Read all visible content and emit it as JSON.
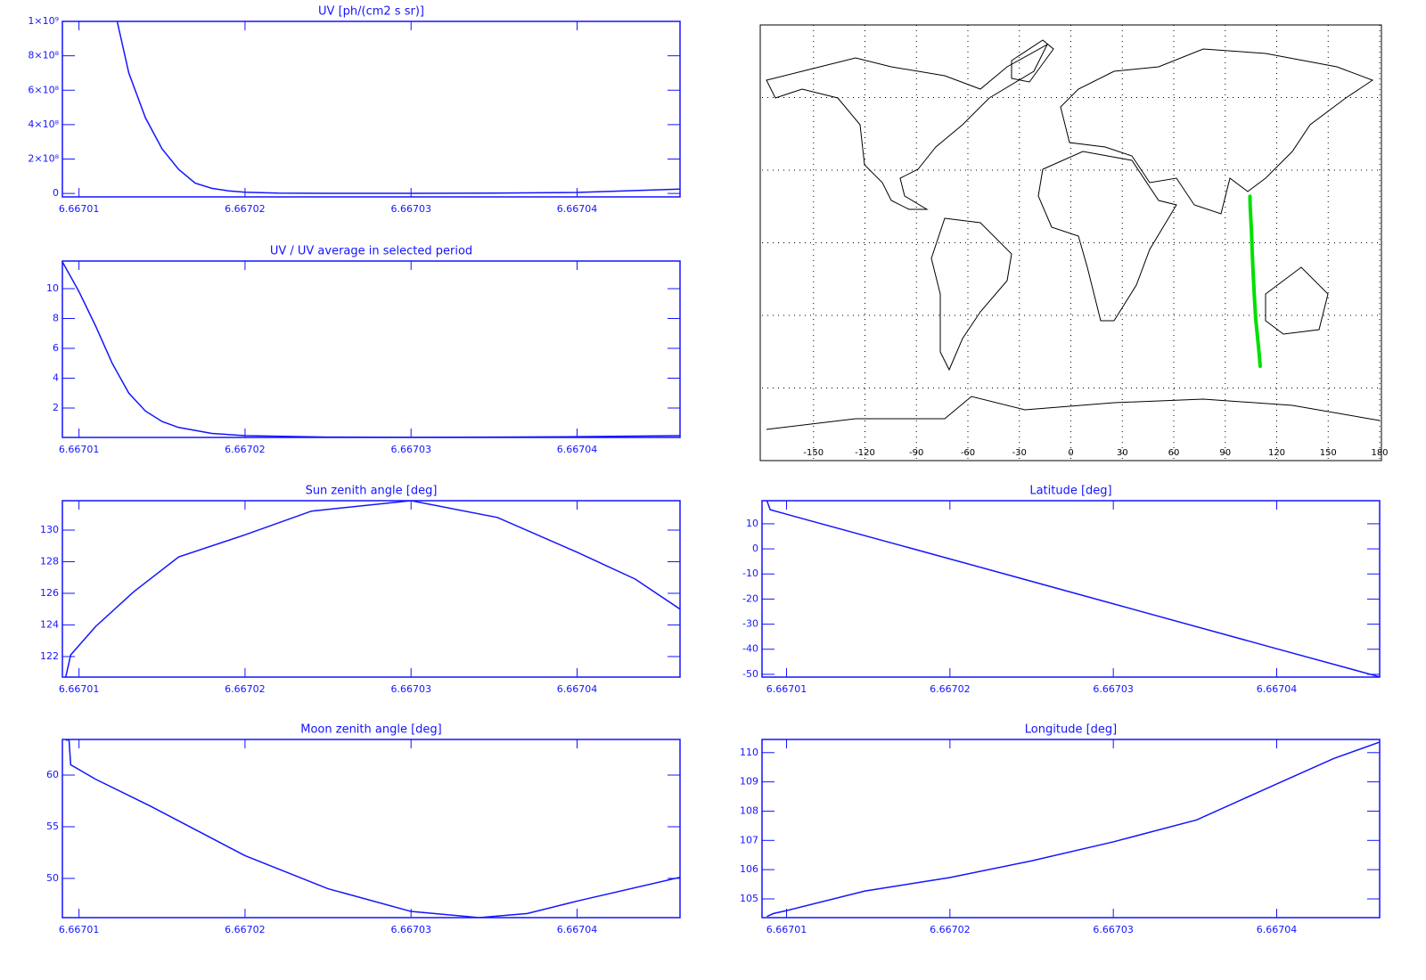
{
  "chart_data": [
    {
      "type": "line",
      "title": "UV [ph/(cm2 s sr)]",
      "color": "#1414ff",
      "x": [
        6.6670123,
        6.667013,
        6.667014,
        6.667015,
        6.667016,
        6.667017,
        6.667018,
        6.667019,
        6.66702,
        6.667022,
        6.667025,
        6.66703,
        6.667035,
        6.66704,
        6.6670462
      ],
      "values": [
        1000000000,
        700000000,
        440000000,
        260000000,
        140000000,
        60000000,
        30000000,
        15000000,
        7000000,
        2000000,
        1000000,
        1000000,
        2000000,
        6000000,
        25000000
      ],
      "xlim": [
        6.667009,
        6.6670462
      ],
      "ylim": [
        -20000000,
        1000000000
      ],
      "xticks": [
        6.66701,
        6.66702,
        6.66703,
        6.66704
      ],
      "yticks": [
        0,
        {
          "value": 200000000,
          "label": "2×10⁸"
        },
        {
          "value": 400000000,
          "label": "4×10⁸"
        },
        {
          "value": 600000000,
          "label": "6×10⁸"
        },
        {
          "value": 800000000,
          "label": "8×10⁸"
        },
        {
          "value": 1000000000,
          "label": "1×10⁹"
        }
      ]
    },
    {
      "type": "line",
      "title": "UV / UV average in selected period",
      "color": "#1414ff",
      "x": [
        6.667009,
        6.66701,
        6.667011,
        6.667012,
        6.667013,
        6.667014,
        6.667015,
        6.667016,
        6.667018,
        6.66702,
        6.667025,
        6.66703,
        6.667035,
        6.66704,
        6.6670462
      ],
      "values": [
        11.8,
        9.8,
        7.5,
        5.0,
        3.0,
        1.8,
        1.1,
        0.7,
        0.3,
        0.15,
        0.05,
        0.04,
        0.05,
        0.08,
        0.15
      ],
      "xlim": [
        6.667009,
        6.6670462
      ],
      "ylim": [
        0.03,
        11.85
      ],
      "xticks": [
        6.66701,
        6.66702,
        6.66703,
        6.66704
      ],
      "yticks": [
        2,
        4,
        6,
        8,
        10
      ]
    },
    {
      "type": "map",
      "color": "#00e000",
      "x": [
        104.4,
        104.5,
        104.6,
        105.27,
        105.73,
        106.3,
        106.95,
        107.7,
        108.93,
        109.8,
        110.36
      ],
      "values": [
        19.2,
        15.6,
        13.8,
        5.2,
        -4.0,
        -13.0,
        -21.9,
        -31.0,
        -39.8,
        -46.0,
        -51.0
      ],
      "xlim": [
        -180,
        180
      ],
      "ylim": [
        -90,
        90
      ],
      "xticks": [
        -150,
        -120,
        -90,
        -60,
        -30,
        0,
        30,
        60,
        90,
        120,
        150,
        180
      ]
    },
    {
      "type": "line",
      "title": "Sun zenith angle [deg]",
      "color": "#1414ff",
      "x": [
        6.6670092,
        6.6670095,
        6.667011,
        6.6670133,
        6.667016,
        6.66702,
        6.667024,
        6.66703,
        6.6670352,
        6.66704,
        6.6670435,
        6.6670462
      ],
      "values": [
        120.7,
        122.1,
        123.9,
        126.1,
        128.3,
        129.7,
        131.2,
        131.86,
        130.8,
        128.6,
        126.9,
        125.0
      ],
      "xlim": [
        6.667009,
        6.6670462
      ],
      "ylim": [
        120.7,
        131.86
      ],
      "xticks": [
        6.66701,
        6.66702,
        6.66703,
        6.66704
      ],
      "yticks": [
        122,
        124,
        126,
        128,
        130
      ]
    },
    {
      "type": "line",
      "title": "Latitude [deg]",
      "color": "#1414ff",
      "x": [
        6.6670088,
        6.667009,
        6.66701,
        6.66702,
        6.66703,
        6.66704,
        6.6670463
      ],
      "values": [
        19.2,
        15.6,
        13.8,
        -4.0,
        -21.9,
        -39.8,
        -51.0
      ],
      "xlim": [
        6.6670085,
        6.6670463
      ],
      "ylim": [
        -51.1,
        19.2
      ],
      "xticks": [
        6.66701,
        6.66702,
        6.66703,
        6.66704
      ],
      "yticks": [
        -50,
        -40,
        -30,
        -20,
        -10,
        0,
        10
      ]
    },
    {
      "type": "line",
      "title": "Moon zenith angle [deg]",
      "color": "#1414ff",
      "x": [
        6.6670092,
        6.6670094,
        6.6670095,
        6.667011,
        6.6670143,
        6.66702,
        6.667025,
        6.66703,
        6.6670341,
        6.667037,
        6.66704,
        6.6670462
      ],
      "values": [
        63.4,
        63.4,
        61.0,
        59.6,
        57.0,
        52.2,
        49.0,
        46.8,
        46.2,
        46.6,
        47.8,
        50.1
      ],
      "xlim": [
        6.667009,
        6.6670462
      ],
      "ylim": [
        46.2,
        63.45
      ],
      "xticks": [
        6.66701,
        6.66702,
        6.66703,
        6.66704
      ],
      "yticks": [
        50,
        55,
        60
      ]
    },
    {
      "type": "line",
      "title": "Longitude [deg]",
      "color": "#1414ff",
      "x": [
        6.6670088,
        6.6670092,
        6.66701,
        6.6670148,
        6.66702,
        6.667025,
        6.66703,
        6.6670351,
        6.66704,
        6.6670435,
        6.6670463
      ],
      "values": [
        104.4,
        104.5,
        104.6,
        105.27,
        105.73,
        106.3,
        106.95,
        107.7,
        108.93,
        109.8,
        110.36
      ],
      "xlim": [
        6.6670085,
        6.6670463
      ],
      "ylim": [
        104.36,
        110.45
      ],
      "xticks": [
        6.66701,
        6.66702,
        6.66703,
        6.66704
      ],
      "yticks": [
        105,
        106,
        107,
        108,
        109,
        110
      ]
    }
  ]
}
